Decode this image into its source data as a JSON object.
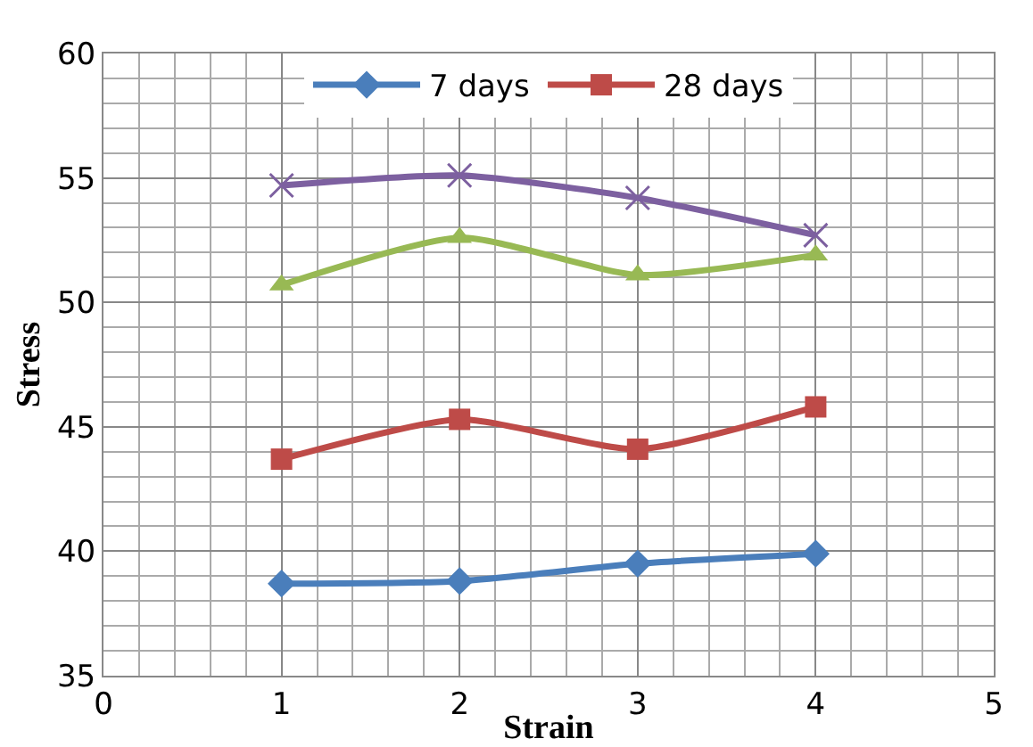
{
  "chart_data": {
    "type": "line",
    "xlabel": "Strain",
    "ylabel": "Stress",
    "x": [
      1,
      2,
      3,
      4
    ],
    "xlim": [
      0,
      5
    ],
    "xticks": [
      0,
      1,
      2,
      3,
      4,
      5
    ],
    "ylim": [
      35,
      60
    ],
    "yticks": [
      35,
      40,
      45,
      50,
      55,
      60
    ],
    "grid": true,
    "legend": "top",
    "line_style": "solid",
    "series": [
      {
        "name": "7 days",
        "color": "#4a7ebb",
        "marker": "diamond",
        "values": [
          38.7,
          38.8,
          39.5,
          39.9
        ]
      },
      {
        "name": "28 days",
        "color": "#be4b48",
        "marker": "square",
        "values": [
          43.7,
          45.3,
          44.1,
          45.8
        ]
      },
      {
        "color": "#98b954",
        "marker": "triangle",
        "values": [
          50.7,
          52.6,
          51.1,
          51.9
        ]
      },
      {
        "color": "#7d60a0",
        "marker": "cross",
        "values": [
          54.7,
          55.1,
          54.2,
          52.7
        ]
      }
    ]
  }
}
